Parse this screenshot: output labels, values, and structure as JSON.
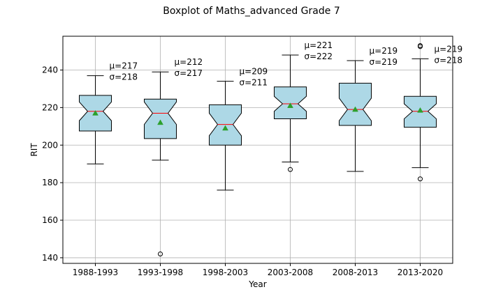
{
  "colors": {
    "box_fill": "#add8e6",
    "median": "#ff0000",
    "mean_marker": "#2ca02c",
    "grid": "#b0b0b0",
    "line": "#000000"
  },
  "chart_data": {
    "type": "boxplot",
    "title": "Boxplot of Maths_advanced Grade 7",
    "xlabel": "Year",
    "ylabel": "RIT",
    "ylim": [
      137,
      258
    ],
    "yticks": [
      140,
      160,
      180,
      200,
      220,
      240
    ],
    "grid": true,
    "notched": true,
    "categories": [
      "1988-1993",
      "1993-1998",
      "1998-2003",
      "2003-2008",
      "2008-2013",
      "2013-2020"
    ],
    "boxes": [
      {
        "whisker_low": 190,
        "q1": 207.5,
        "median": 218,
        "q3": 226.5,
        "whisker_high": 237,
        "mean": 217,
        "notch_low": 213,
        "notch_high": 223,
        "outliers": []
      },
      {
        "whisker_low": 192,
        "q1": 203.5,
        "median": 217,
        "q3": 224.5,
        "whisker_high": 239,
        "mean": 212,
        "notch_low": 211,
        "notch_high": 223,
        "outliers": [
          142
        ]
      },
      {
        "whisker_low": 176,
        "q1": 200,
        "median": 211,
        "q3": 221.5,
        "whisker_high": 234,
        "mean": 209,
        "notch_low": 205,
        "notch_high": 217,
        "outliers": []
      },
      {
        "whisker_low": 191,
        "q1": 214,
        "median": 222,
        "q3": 231,
        "whisker_high": 248,
        "mean": 221,
        "notch_low": 218,
        "notch_high": 226,
        "outliers": [
          187
        ]
      },
      {
        "whisker_low": 186,
        "q1": 210.5,
        "median": 219,
        "q3": 233,
        "whisker_high": 245,
        "mean": 219,
        "notch_low": 213,
        "notch_high": 225,
        "outliers": []
      },
      {
        "whisker_low": 188,
        "q1": 209.5,
        "median": 218,
        "q3": 226,
        "whisker_high": 246,
        "mean": 218.5,
        "notch_low": 214,
        "notch_high": 222,
        "outliers": [
          182,
          252.5,
          253
        ]
      }
    ],
    "annotations": [
      {
        "mu": "μ=217",
        "sigma": "σ=218"
      },
      {
        "mu": "μ=212",
        "sigma": "σ=217"
      },
      {
        "mu": "μ=209",
        "sigma": "σ=211"
      },
      {
        "mu": "μ=221",
        "sigma": "σ=222"
      },
      {
        "mu": "μ=219",
        "sigma": "σ=219"
      },
      {
        "mu": "μ=219",
        "sigma": "σ=218"
      }
    ]
  }
}
